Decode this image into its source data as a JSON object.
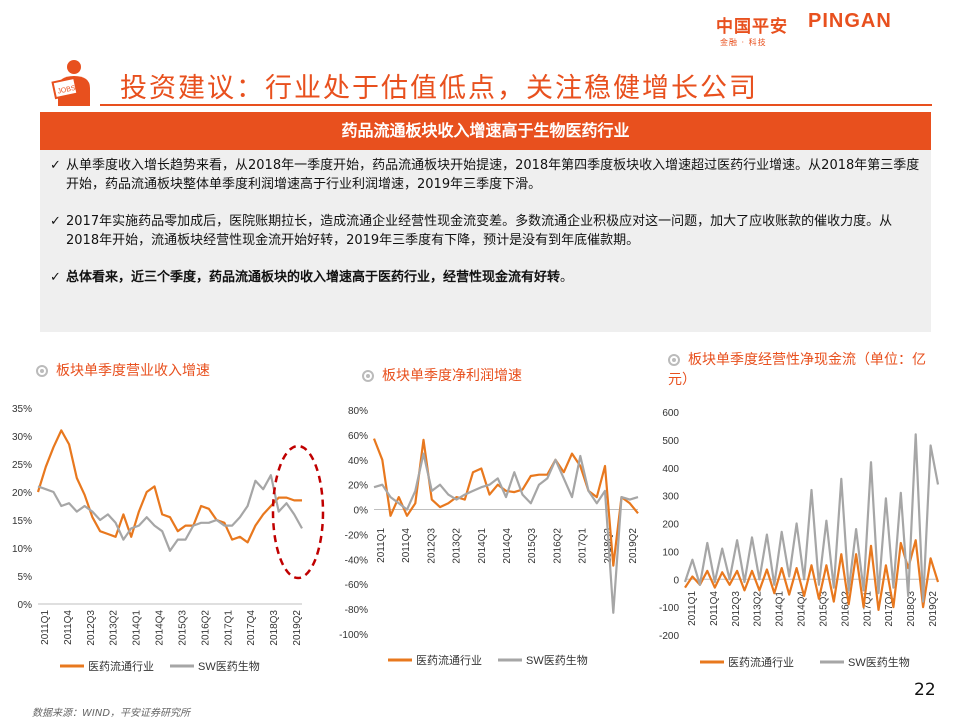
{
  "brand": {
    "cn": "中国平安",
    "en": "PINGAN",
    "sub": "金融 · 科技"
  },
  "title": "投资建议：行业处于估值低点，关注稳健增长公司",
  "summary": {
    "heading": "药品流通板块收入增速高于生物医药行业",
    "bullet1": "从单季度收入增长趋势来看，从2018年一季度开始，药品流通板块开始提速，2018年第四季度板块收入增速超过医药行业增速。从2018年第三季度开始，药品流通板块整体单季度利润增速高于行业利润增速，2019年三季度下滑。",
    "bullet2": "2017年实施药品零加成后，医院账期拉长，造成流通企业经营性现金流变差。多数流通企业积极应对这一问题，加大了应收账款的催收力度。从2018年开始，流通板块经营性现金流开始好转，2019年三季度有下降，预计是没有到年底催款期。",
    "bullet3_bold": "总体看来，近三个季度，药品流通板块的收入增速高于医药行业，经营性现金流有好转",
    "bullet3_tail": "。"
  },
  "colors": {
    "accent": "#e8501e",
    "series1": "#e8781e",
    "series2": "#a6a6a6"
  },
  "icons": {
    "check": "✓",
    "title_icon": "jobs-figure-icon",
    "chart_bullet": "target-icon"
  },
  "chart_data": [
    {
      "type": "line",
      "title": "板块单季度营业收入增速",
      "ylim": [
        0,
        0.35
      ],
      "yticks": [
        "0%",
        "5%",
        "10%",
        "15%",
        "20%",
        "25%",
        "30%",
        "35%"
      ],
      "x_labels": [
        "2011Q1",
        "2011Q4",
        "2012Q3",
        "2013Q2",
        "2014Q1",
        "2014Q4",
        "2015Q3",
        "2016Q2",
        "2017Q1",
        "2017Q4",
        "2018Q3",
        "2019Q2"
      ],
      "series": [
        {
          "name": "医药流通行业",
          "values": [
            0.2,
            0.245,
            0.28,
            0.31,
            0.285,
            0.225,
            0.195,
            0.155,
            0.13,
            0.125,
            0.12,
            0.16,
            0.12,
            0.165,
            0.2,
            0.21,
            0.16,
            0.155,
            0.13,
            0.14,
            0.14,
            0.175,
            0.17,
            0.15,
            0.145,
            0.115,
            0.12,
            0.11,
            0.14,
            0.16,
            0.175,
            0.19,
            0.19,
            0.185,
            0.185
          ]
        },
        {
          "name": "SW医药生物",
          "values": [
            0.21,
            0.205,
            0.2,
            0.175,
            0.18,
            0.165,
            0.175,
            0.165,
            0.15,
            0.16,
            0.145,
            0.115,
            0.135,
            0.14,
            0.155,
            0.14,
            0.13,
            0.095,
            0.115,
            0.115,
            0.14,
            0.145,
            0.145,
            0.15,
            0.14,
            0.14,
            0.155,
            0.175,
            0.22,
            0.205,
            0.23,
            0.165,
            0.18,
            0.16,
            0.135
          ]
        }
      ]
    },
    {
      "type": "line",
      "title": "板块单季度净利润增速",
      "ylim": [
        -1.0,
        0.8
      ],
      "yticks": [
        "-100%",
        "-80%",
        "-60%",
        "-40%",
        "-20%",
        "0%",
        "20%",
        "40%",
        "60%",
        "80%"
      ],
      "x_labels": [
        "2011Q1",
        "2011Q4",
        "2012Q3",
        "2013Q2",
        "2014Q1",
        "2014Q4",
        "2015Q3",
        "2016Q2",
        "2017Q1",
        "2018Q3",
        "2019Q2"
      ],
      "series": [
        {
          "name": "医药流通行业",
          "values": [
            0.57,
            0.4,
            -0.05,
            0.1,
            -0.05,
            0.05,
            0.56,
            0.08,
            0.02,
            0.05,
            0.1,
            0.08,
            0.3,
            0.33,
            0.12,
            0.2,
            0.15,
            0.14,
            0.16,
            0.27,
            0.28,
            0.28,
            0.4,
            0.3,
            0.45,
            0.35,
            0.15,
            0.1,
            0.35,
            -0.45,
            0.1,
            0.05,
            -0.03
          ]
        },
        {
          "name": "SW医药生物",
          "values": [
            0.18,
            0.2,
            0.1,
            0.05,
            0.0,
            0.15,
            0.45,
            0.15,
            0.2,
            0.12,
            0.08,
            0.12,
            0.15,
            0.18,
            0.2,
            0.25,
            0.1,
            0.3,
            0.12,
            0.05,
            0.2,
            0.25,
            0.4,
            0.25,
            0.1,
            0.43,
            0.15,
            0.05,
            0.15,
            -0.83,
            0.1,
            0.08,
            0.1
          ]
        }
      ]
    },
    {
      "type": "line",
      "title": "板块单季度经营性净现金流（单位：亿元）",
      "ylim": [
        -200,
        600
      ],
      "yticks": [
        "-200",
        "-100",
        "0",
        "100",
        "200",
        "300",
        "400",
        "500",
        "600"
      ],
      "x_labels": [
        "2011Q1",
        "2011Q4",
        "2012Q3",
        "2013Q2",
        "2014Q1",
        "2014Q4",
        "2015Q3",
        "2016Q2",
        "2017Q1",
        "2017Q4",
        "2018Q3",
        "2019Q2"
      ],
      "series": [
        {
          "name": "医药流通行业",
          "values": [
            -30,
            10,
            -20,
            30,
            -30,
            25,
            -20,
            30,
            -40,
            30,
            -40,
            35,
            -50,
            40,
            -55,
            40,
            -60,
            50,
            -70,
            50,
            -80,
            90,
            -90,
            90,
            -100,
            120,
            -110,
            50,
            -100,
            130,
            40,
            140,
            -100,
            75,
            -10
          ]
        },
        {
          "name": "SW医药生物",
          "values": [
            -10,
            70,
            -20,
            130,
            -10,
            110,
            0,
            140,
            -10,
            150,
            0,
            160,
            -20,
            170,
            10,
            200,
            0,
            320,
            -20,
            210,
            -30,
            360,
            -40,
            180,
            -40,
            420,
            -50,
            290,
            -30,
            310,
            -60,
            520,
            -80,
            480,
            340
          ]
        }
      ]
    }
  ],
  "legend": [
    "医药流通行业",
    "SW医药生物"
  ],
  "footer": {
    "source": "数据来源：WIND，平安证券研究所",
    "page": "22"
  }
}
